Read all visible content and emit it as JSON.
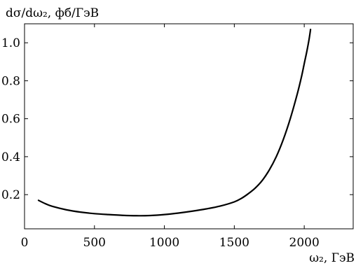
{
  "chart_data": {
    "type": "line",
    "title": "",
    "ylabel": "dσ/dω₂, фб/ГэВ",
    "xlabel": "ω₂, ГэВ",
    "xlim": [
      0,
      2350
    ],
    "ylim": [
      0.02,
      1.1
    ],
    "x_ticks": [
      0,
      500,
      1000,
      1500,
      2000
    ],
    "x_tick_labels": [
      "0",
      "500",
      "1000",
      "1500",
      "2000"
    ],
    "y_ticks": [
      0.2,
      0.4,
      0.6,
      0.8,
      1.0
    ],
    "y_tick_labels": [
      "0.2",
      "0.4",
      "0.6",
      "0.8",
      "1.0"
    ],
    "grid": false,
    "legend": "none",
    "series": [
      {
        "x": [
          100,
          150,
          200,
          300,
          400,
          500,
          600,
          700,
          800,
          900,
          1000,
          1100,
          1200,
          1300,
          1400,
          1500,
          1550,
          1600,
          1650,
          1700,
          1750,
          1800,
          1850,
          1900,
          1950,
          1980,
          2000,
          2020,
          2035,
          2045
        ],
        "values": [
          0.17,
          0.152,
          0.138,
          0.12,
          0.108,
          0.1,
          0.095,
          0.091,
          0.089,
          0.09,
          0.095,
          0.103,
          0.113,
          0.125,
          0.14,
          0.162,
          0.18,
          0.205,
          0.235,
          0.275,
          0.33,
          0.4,
          0.49,
          0.6,
          0.73,
          0.82,
          0.89,
          0.96,
          1.02,
          1.07
        ]
      }
    ]
  }
}
